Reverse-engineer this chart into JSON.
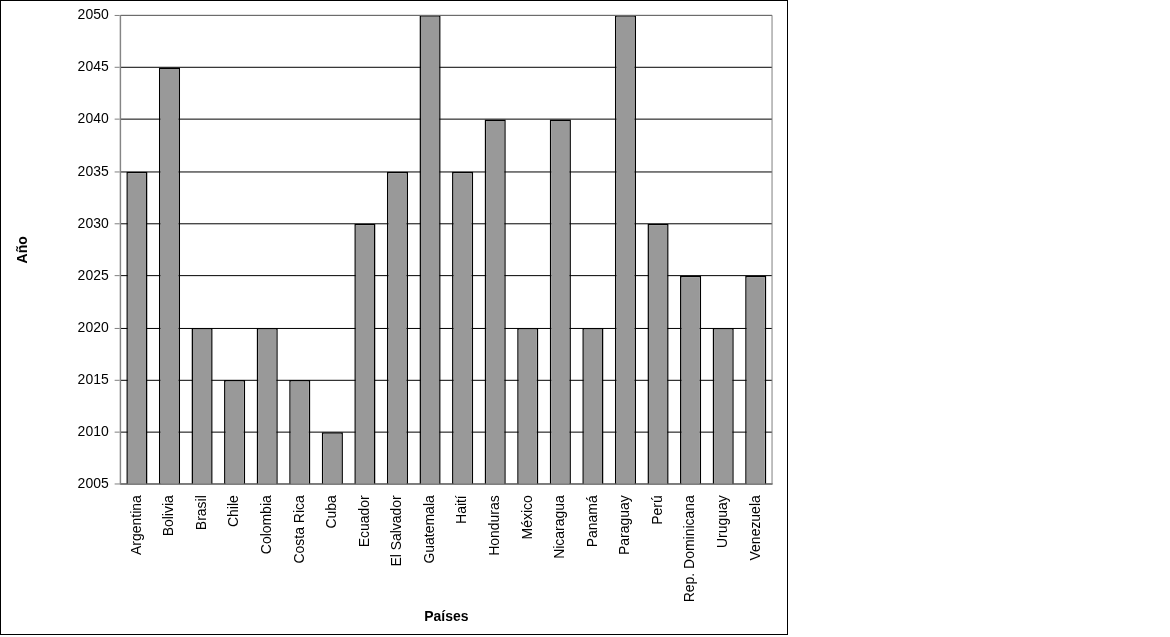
{
  "chart_data": {
    "type": "bar",
    "xlabel": "Países",
    "ylabel": "Año",
    "categories": [
      "Argentina",
      "Bolivia",
      "Brasil",
      "Chile",
      "Colombia",
      "Costa Rica",
      "Cuba",
      "Ecuador",
      "El Salvador",
      "Guatemala",
      "Haití",
      "Honduras",
      "México",
      "Nicaragua",
      "Panamá",
      "Paraguay",
      "Perú",
      "Rep. Dominicana",
      "Uruguay",
      "Venezuela"
    ],
    "values": [
      2035,
      2045,
      2020,
      2015,
      2020,
      2015,
      2010,
      2030,
      2035,
      2050,
      2035,
      2040,
      2020,
      2040,
      2020,
      2050,
      2030,
      2025,
      2020,
      2025
    ],
    "color": "#999999",
    "ylim": [
      2005,
      2050
    ],
    "yticks": [
      2005,
      2010,
      2015,
      2020,
      2025,
      2030,
      2035,
      2040,
      2045,
      2050
    ],
    "grid": "y",
    "legend": false
  }
}
